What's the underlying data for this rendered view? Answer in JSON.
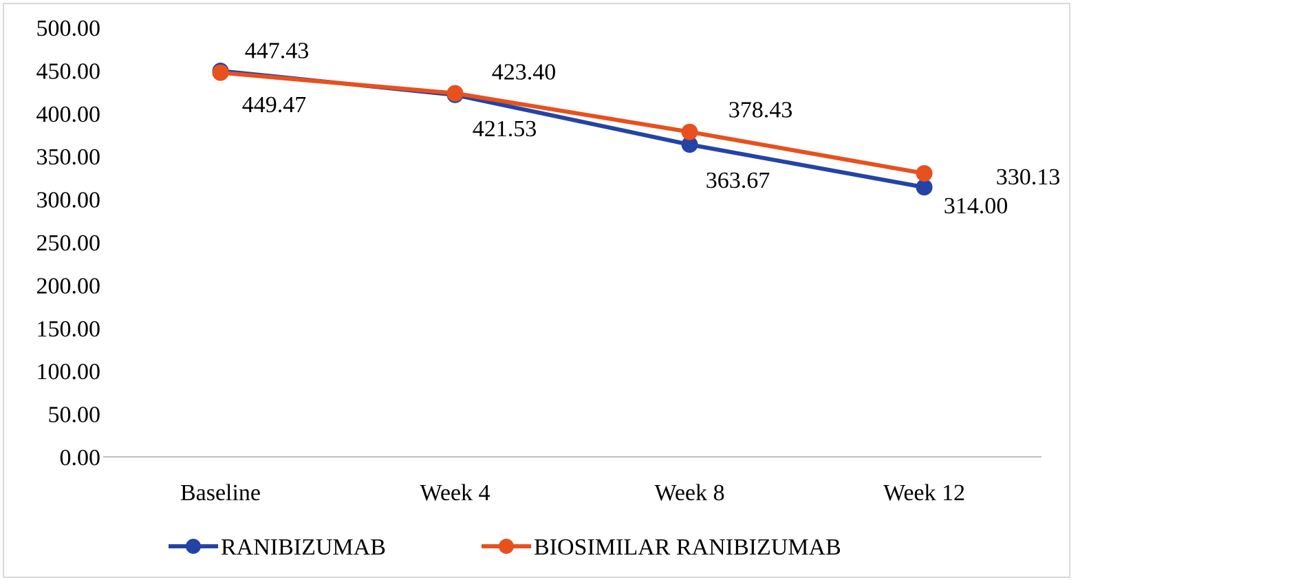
{
  "chart_data": {
    "type": "line",
    "categories": [
      "Baseline",
      "Week 4",
      "Week 8",
      "Week 12"
    ],
    "ylim": [
      0,
      500
    ],
    "yticks": [
      "0.00",
      "50.00",
      "100.00",
      "150.00",
      "200.00",
      "250.00",
      "300.00",
      "350.00",
      "400.00",
      "450.00",
      "500.00"
    ],
    "grid": false,
    "legend": "bottom",
    "series": [
      {
        "name": "RANIBIZUMAB",
        "color": "#2443a6",
        "values": [
          449.47,
          421.53,
          363.67,
          314.0
        ],
        "labels": [
          "449.47",
          "421.53",
          "363.67",
          "314.00"
        ]
      },
      {
        "name": "BIOSIMILAR RANIBIZUMAB",
        "color": "#e8501e",
        "values": [
          447.43,
          423.4,
          378.43,
          330.13
        ],
        "labels": [
          "447.43",
          "423.40",
          "378.43",
          "330.13"
        ]
      }
    ]
  }
}
